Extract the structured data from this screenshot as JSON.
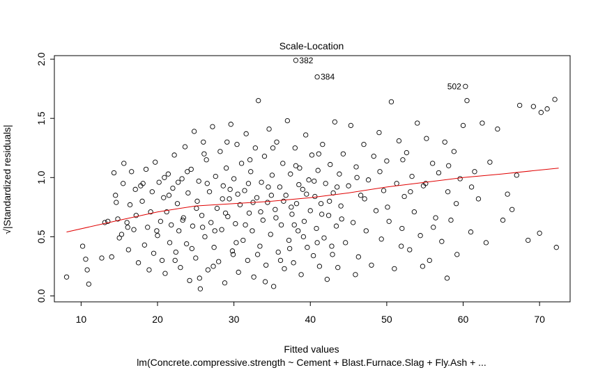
{
  "chart_data": {
    "type": "scatter",
    "title": "Scale-Location",
    "xlabel": "Fitted values",
    "ylabel": "√|Standardized residuals|",
    "subtitle": "lm(Concrete.compressive.strength ~ Cement + Blast.Furnace.Slag + Fly.Ash +  ...",
    "xlim": [
      6.5,
      74
    ],
    "ylim": [
      -0.05,
      2.03
    ],
    "xticks": [
      10,
      20,
      30,
      40,
      50,
      60,
      70
    ],
    "yticks": [
      0.0,
      0.5,
      1.0,
      1.5,
      2.0
    ],
    "xtick_labels": [
      "10",
      "20",
      "30",
      "40",
      "50",
      "60",
      "70"
    ],
    "ytick_labels": [
      "0.0",
      "0.5",
      "1.0",
      "1.5",
      "2.0"
    ],
    "grid": false,
    "point_color": "#000000",
    "smooth_color": "#e00000",
    "points": [
      [
        8.1,
        0.16
      ],
      [
        10.2,
        0.42
      ],
      [
        10.6,
        0.31
      ],
      [
        10.8,
        0.22
      ],
      [
        11.0,
        0.1
      ],
      [
        12.7,
        0.32
      ],
      [
        13.1,
        0.62
      ],
      [
        13.5,
        0.63
      ],
      [
        14.0,
        0.33
      ],
      [
        14.3,
        1.04
      ],
      [
        14.5,
        0.85
      ],
      [
        14.6,
        0.79
      ],
      [
        14.8,
        0.65
      ],
      [
        15.0,
        0.49
      ],
      [
        15.3,
        0.52
      ],
      [
        15.5,
        0.95
      ],
      [
        15.6,
        1.12
      ],
      [
        16.0,
        0.62
      ],
      [
        16.2,
        0.39
      ],
      [
        16.4,
        0.77
      ],
      [
        16.6,
        1.05
      ],
      [
        16.9,
        0.56
      ],
      [
        17.2,
        0.68
      ],
      [
        17.5,
        0.28
      ],
      [
        17.8,
        0.93
      ],
      [
        18.0,
        0.8
      ],
      [
        18.3,
        0.43
      ],
      [
        18.5,
        1.07
      ],
      [
        18.7,
        0.58
      ],
      [
        18.9,
        0.22
      ],
      [
        19.1,
        0.71
      ],
      [
        19.3,
        0.88
      ],
      [
        19.5,
        0.36
      ],
      [
        19.7,
        1.13
      ],
      [
        20.0,
        0.51
      ],
      [
        20.2,
        0.96
      ],
      [
        20.4,
        0.63
      ],
      [
        20.6,
        0.3
      ],
      [
        20.8,
        0.83
      ],
      [
        21.0,
        0.19
      ],
      [
        21.2,
        0.71
      ],
      [
        21.4,
        1.03
      ],
      [
        21.6,
        0.45
      ],
      [
        21.8,
        0.6
      ],
      [
        22.0,
        0.91
      ],
      [
        22.2,
        1.19
      ],
      [
        22.4,
        0.37
      ],
      [
        22.6,
        0.78
      ],
      [
        22.8,
        0.55
      ],
      [
        23.0,
        0.24
      ],
      [
        23.2,
        0.99
      ],
      [
        23.4,
        0.66
      ],
      [
        23.6,
        1.26
      ],
      [
        23.8,
        0.44
      ],
      [
        24.0,
        0.87
      ],
      [
        24.2,
        0.13
      ],
      [
        24.4,
        1.07
      ],
      [
        24.6,
        0.59
      ],
      [
        24.8,
        1.39
      ],
      [
        25.0,
        0.32
      ],
      [
        25.2,
        0.8
      ],
      [
        25.4,
        0.97
      ],
      [
        25.6,
        0.06
      ],
      [
        25.8,
        0.68
      ],
      [
        26.0,
        1.3
      ],
      [
        26.2,
        0.5
      ],
      [
        26.4,
        1.15
      ],
      [
        26.6,
        0.22
      ],
      [
        26.8,
        0.88
      ],
      [
        27.0,
        0.62
      ],
      [
        27.2,
        1.43
      ],
      [
        27.4,
        0.41
      ],
      [
        27.6,
        1.01
      ],
      [
        27.8,
        0.74
      ],
      [
        28.0,
        0.29
      ],
      [
        28.2,
        1.22
      ],
      [
        28.4,
        0.56
      ],
      [
        28.6,
        0.93
      ],
      [
        28.8,
        0.11
      ],
      [
        29.0,
        1.08
      ],
      [
        29.2,
        0.67
      ],
      [
        29.4,
        0.82
      ],
      [
        29.6,
        1.45
      ],
      [
        29.8,
        0.38
      ],
      [
        30.0,
        0.99
      ],
      [
        30.2,
        0.61
      ],
      [
        30.4,
        1.28
      ],
      [
        30.6,
        0.2
      ],
      [
        30.8,
        0.77
      ],
      [
        31.0,
        1.12
      ],
      [
        31.2,
        0.47
      ],
      [
        31.4,
        0.89
      ],
      [
        31.6,
        1.37
      ],
      [
        31.8,
        0.3
      ],
      [
        32.0,
        0.7
      ],
      [
        32.2,
        1.05
      ],
      [
        32.4,
        0.55
      ],
      [
        32.6,
        0.16
      ],
      [
        32.8,
        1.25
      ],
      [
        33.0,
        0.83
      ],
      [
        33.2,
        1.65
      ],
      [
        33.4,
        0.42
      ],
      [
        33.6,
        0.96
      ],
      [
        33.8,
        0.64
      ],
      [
        34.0,
        1.18
      ],
      [
        34.2,
        0.26
      ],
      [
        34.4,
        0.79
      ],
      [
        34.6,
        1.41
      ],
      [
        34.8,
        0.52
      ],
      [
        35.0,
        1.02
      ],
      [
        35.2,
        0.08
      ],
      [
        35.4,
        0.73
      ],
      [
        35.6,
        1.3
      ],
      [
        35.8,
        0.37
      ],
      [
        36.0,
        0.92
      ],
      [
        36.2,
        0.6
      ],
      [
        36.4,
        1.12
      ],
      [
        36.6,
        0.23
      ],
      [
        36.8,
        0.85
      ],
      [
        37.0,
        1.48
      ],
      [
        37.2,
        0.47
      ],
      [
        37.4,
        1.03
      ],
      [
        37.6,
        0.69
      ],
      [
        37.8,
        0.28
      ],
      [
        38.0,
        1.25
      ],
      [
        38.2,
        0.78
      ],
      [
        38.4,
        0.55
      ],
      [
        38.6,
        1.08
      ],
      [
        38.8,
        0.18
      ],
      [
        39.0,
        0.9
      ],
      [
        39.2,
        0.63
      ],
      [
        39.4,
        1.36
      ],
      [
        39.6,
        0.41
      ],
      [
        39.8,
        0.98
      ],
      [
        40.0,
        0.72
      ],
      [
        40.2,
        1.19
      ],
      [
        40.4,
        0.34
      ],
      [
        40.6,
        0.84
      ],
      [
        40.8,
        0.57
      ],
      [
        41.0,
        1.06
      ],
      [
        41.2,
        0.25
      ],
      [
        41.4,
        0.78
      ],
      [
        41.6,
        1.28
      ],
      [
        41.8,
        0.49
      ],
      [
        42.0,
        0.95
      ],
      [
        42.2,
        0.14
      ],
      [
        42.4,
        0.68
      ],
      [
        42.6,
        1.11
      ],
      [
        42.8,
        0.42
      ],
      [
        43.0,
        0.87
      ],
      [
        43.2,
        1.47
      ],
      [
        43.4,
        0.59
      ],
      [
        43.6,
        0.24
      ],
      [
        43.8,
        1.03
      ],
      [
        44.0,
        0.76
      ],
      [
        44.3,
        1.2
      ],
      [
        44.6,
        0.45
      ],
      [
        45.0,
        0.93
      ],
      [
        45.3,
        1.44
      ],
      [
        45.6,
        0.62
      ],
      [
        46.0,
        1.09
      ],
      [
        46.3,
        0.33
      ],
      [
        46.6,
        0.85
      ],
      [
        47.0,
        1.28
      ],
      [
        47.3,
        0.55
      ],
      [
        47.6,
        0.98
      ],
      [
        48.0,
        0.26
      ],
      [
        48.3,
        1.18
      ],
      [
        48.6,
        0.72
      ],
      [
        49.0,
        1.38
      ],
      [
        49.3,
        0.48
      ],
      [
        49.6,
        0.89
      ],
      [
        50.0,
        1.14
      ],
      [
        50.3,
        0.63
      ],
      [
        50.6,
        1.64
      ],
      [
        51.0,
        0.23
      ],
      [
        51.3,
        0.95
      ],
      [
        51.6,
        1.31
      ],
      [
        52.0,
        0.57
      ],
      [
        52.3,
        0.84
      ],
      [
        52.6,
        1.21
      ],
      [
        53.0,
        0.39
      ],
      [
        53.3,
        1.01
      ],
      [
        53.6,
        0.71
      ],
      [
        54.0,
        1.46
      ],
      [
        54.4,
        0.51
      ],
      [
        54.8,
        0.93
      ],
      [
        55.2,
        1.33
      ],
      [
        55.6,
        0.3
      ],
      [
        56.0,
        1.12
      ],
      [
        56.4,
        0.66
      ],
      [
        56.8,
        1.04
      ],
      [
        57.2,
        0.46
      ],
      [
        57.6,
        1.3
      ],
      [
        58.0,
        0.88
      ],
      [
        58.4,
        0.64
      ],
      [
        58.8,
        1.22
      ],
      [
        59.2,
        0.35
      ],
      [
        59.6,
        0.99
      ],
      [
        60.0,
        1.44
      ],
      [
        60.5,
        1.65
      ],
      [
        61.0,
        0.54
      ],
      [
        61.5,
        1.05
      ],
      [
        62.0,
        0.82
      ],
      [
        62.5,
        1.46
      ],
      [
        63.0,
        0.45
      ],
      [
        63.5,
        1.13
      ],
      [
        64.5,
        1.41
      ],
      [
        65.2,
        0.64
      ],
      [
        65.8,
        0.86
      ],
      [
        66.4,
        0.73
      ],
      [
        67.0,
        1.02
      ],
      [
        67.4,
        1.61
      ],
      [
        68.5,
        0.47
      ],
      [
        69.2,
        1.6
      ],
      [
        70.0,
        0.53
      ],
      [
        70.2,
        1.55
      ],
      [
        71.0,
        1.58
      ],
      [
        72.0,
        1.66
      ],
      [
        72.2,
        0.41
      ],
      [
        21.5,
        0.85
      ],
      [
        22.7,
        0.96
      ],
      [
        23.9,
        1.05
      ],
      [
        25.1,
        0.74
      ],
      [
        26.5,
        0.95
      ],
      [
        27.5,
        0.55
      ],
      [
        28.5,
        0.82
      ],
      [
        29.5,
        0.9
      ],
      [
        30.5,
        0.86
      ],
      [
        31.5,
        0.6
      ],
      [
        32.5,
        0.79
      ],
      [
        33.5,
        0.71
      ],
      [
        34.5,
        0.92
      ],
      [
        35.5,
        0.66
      ],
      [
        36.5,
        0.8
      ],
      [
        37.5,
        0.75
      ],
      [
        38.5,
        0.94
      ],
      [
        39.5,
        0.86
      ],
      [
        40.5,
        0.97
      ],
      [
        41.5,
        0.69
      ],
      [
        42.5,
        0.8
      ],
      [
        43.5,
        0.92
      ],
      [
        24.5,
        0.4
      ],
      [
        27.3,
        0.25
      ],
      [
        30.3,
        0.45
      ],
      [
        33.1,
        0.35
      ],
      [
        36.1,
        0.3
      ],
      [
        39.1,
        0.5
      ],
      [
        26.1,
        1.2
      ],
      [
        29.1,
        1.3
      ],
      [
        32.1,
        1.15
      ],
      [
        35.1,
        1.25
      ],
      [
        38.1,
        1.1
      ],
      [
        41.1,
        1.2
      ],
      [
        20.9,
        1.0
      ],
      [
        23.3,
        0.64
      ],
      [
        25.9,
        0.58
      ],
      [
        28.9,
        0.7
      ],
      [
        31.9,
        0.95
      ],
      [
        34.9,
        0.85
      ],
      [
        37.9,
        0.6
      ],
      [
        40.9,
        0.45
      ],
      [
        44.1,
        0.65
      ],
      [
        47.1,
        0.82
      ],
      [
        50.1,
        0.75
      ],
      [
        53.1,
        0.88
      ],
      [
        56.1,
        0.58
      ],
      [
        59.1,
        0.78
      ],
      [
        46.1,
        1.0
      ],
      [
        49.1,
        1.05
      ],
      [
        52.1,
        1.15
      ],
      [
        55.1,
        0.95
      ],
      [
        58.1,
        1.1
      ],
      [
        61.1,
        0.92
      ],
      [
        22.3,
        0.3
      ],
      [
        25.5,
        0.15
      ],
      [
        29.9,
        0.35
      ],
      [
        34.1,
        0.12
      ],
      [
        37.3,
        0.4
      ],
      [
        42.9,
        0.35
      ],
      [
        45.9,
        0.18
      ],
      [
        51.9,
        0.42
      ],
      [
        54.7,
        0.25
      ],
      [
        57.9,
        0.15
      ],
      [
        19.9,
        0.55
      ],
      [
        18.1,
        0.95
      ],
      [
        17.1,
        0.9
      ],
      [
        16.1,
        0.58
      ]
    ],
    "smooth_line": [
      [
        8.1,
        0.54
      ],
      [
        15,
        0.64
      ],
      [
        20,
        0.71
      ],
      [
        25,
        0.76
      ],
      [
        30,
        0.78
      ],
      [
        35,
        0.8
      ],
      [
        40,
        0.83
      ],
      [
        45,
        0.87
      ],
      [
        50,
        0.92
      ],
      [
        55,
        0.96
      ],
      [
        60,
        1.0
      ],
      [
        65,
        1.03
      ],
      [
        72.5,
        1.08
      ]
    ],
    "labeled_points": [
      {
        "label": "382",
        "x": 38.1,
        "y": 1.99
      },
      {
        "label": "384",
        "x": 40.9,
        "y": 1.85
      },
      {
        "label": "502",
        "x": 60.3,
        "y": 1.77
      }
    ]
  }
}
